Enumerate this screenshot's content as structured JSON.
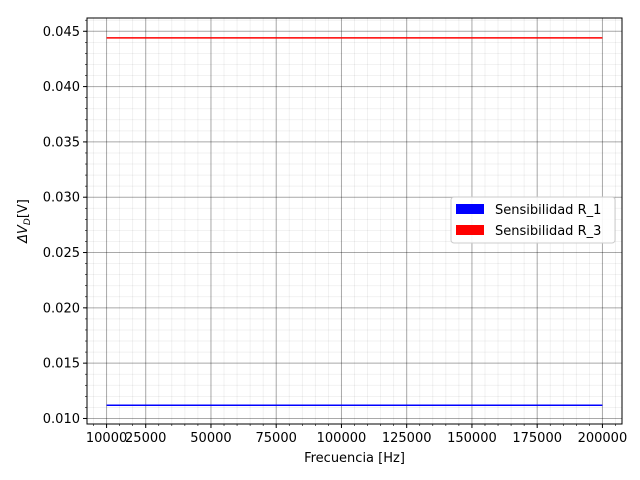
{
  "chart_data": {
    "type": "line",
    "xlabel": "Frecuencia [Hz]",
    "ylabel_prefix": "ΔV",
    "ylabel_sub": "D",
    "ylabel_suffix": "[V]",
    "xlim": [
      2500,
      207500
    ],
    "ylim": [
      0.0095,
      0.0462
    ],
    "xticks": [
      10000,
      25000,
      50000,
      75000,
      100000,
      125000,
      150000,
      175000,
      200000
    ],
    "xtick_labels": [
      "10000",
      "25000",
      "50000",
      "75000",
      "100000",
      "125000",
      "150000",
      "175000",
      "200000"
    ],
    "yticks": [
      0.01,
      0.015,
      0.02,
      0.025,
      0.03,
      0.035,
      0.04,
      0.045
    ],
    "ytick_labels": [
      "0.010",
      "0.015",
      "0.020",
      "0.025",
      "0.030",
      "0.035",
      "0.040",
      "0.045"
    ],
    "grid": true,
    "minor_grid": true,
    "legend_position": "center-right",
    "series": [
      {
        "name": "Sensibilidad R_1",
        "color": "#0000ff",
        "x": [
          10000,
          200000
        ],
        "y": [
          0.0112,
          0.0112
        ]
      },
      {
        "name": "Sensibilidad R_3",
        "color": "#ff0000",
        "x": [
          10000,
          200000
        ],
        "y": [
          0.0444,
          0.0444
        ]
      }
    ]
  }
}
